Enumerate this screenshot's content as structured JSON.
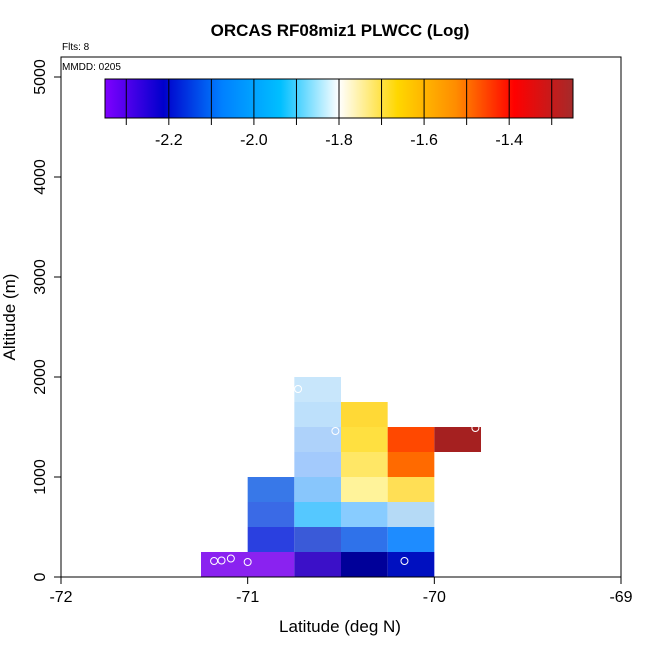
{
  "chart_data": {
    "type": "heatmap",
    "title": "ORCAS RF08miz1 PLWCC (Log)",
    "xlabel": "Latitude (deg N)",
    "ylabel": "Altitude (m)",
    "xlim": [
      -72,
      -69
    ],
    "ylim": [
      0,
      5200
    ],
    "x_ticks": [
      -72,
      -71,
      -70,
      -69
    ],
    "x_tick_labels": [
      "-72",
      "-71",
      "-70",
      "-69"
    ],
    "y_ticks": [
      0,
      1000,
      2000,
      3000,
      4000,
      5000
    ],
    "y_tick_labels": [
      "0",
      "1000",
      "2000",
      "3000",
      "4000",
      "5000"
    ],
    "notes": {
      "flights": "Flts: 8",
      "date": "MMDD: 0205"
    },
    "colorbar": {
      "range": [
        -2.35,
        -1.25
      ],
      "ticks": [
        -2.2,
        -2.0,
        -1.8,
        -1.6,
        -1.4
      ],
      "tick_labels": [
        "-2.2",
        "-2.0",
        "-1.8",
        "-1.6",
        "-1.4"
      ],
      "colors": [
        "#7f00ff",
        "#0000cc",
        "#0080ff",
        "#00bfff",
        "#ffffff",
        "#ffd700",
        "#ff8c00",
        "#ff0000",
        "#a52a2a"
      ]
    },
    "cells": [
      {
        "x0": -71.25,
        "x1": -70.75,
        "y0": 0,
        "y1": 250,
        "color": "#8a22f0",
        "value": -2.28
      },
      {
        "x0": -70.75,
        "x1": -70.5,
        "y0": 0,
        "y1": 250,
        "color": "#3b10c8",
        "value": -2.22
      },
      {
        "x0": -70.5,
        "x1": -70.25,
        "y0": 0,
        "y1": 250,
        "color": "#000099",
        "value": -2.17
      },
      {
        "x0": -70.25,
        "x1": -70.0,
        "y0": 0,
        "y1": 250,
        "color": "#0010c0",
        "value": -2.15
      },
      {
        "x0": -71.0,
        "x1": -70.75,
        "y0": 250,
        "y1": 500,
        "color": "#2a40e0",
        "value": -2.1
      },
      {
        "x0": -70.75,
        "x1": -70.5,
        "y0": 250,
        "y1": 500,
        "color": "#3a5ad8",
        "value": -2.06
      },
      {
        "x0": -70.5,
        "x1": -70.25,
        "y0": 250,
        "y1": 500,
        "color": "#2f72ea",
        "value": -2.03
      },
      {
        "x0": -70.25,
        "x1": -70.0,
        "y0": 250,
        "y1": 500,
        "color": "#1e8cff",
        "value": -1.98
      },
      {
        "x0": -71.0,
        "x1": -70.75,
        "y0": 500,
        "y1": 750,
        "color": "#3a6ae6",
        "value": -2.04
      },
      {
        "x0": -70.75,
        "x1": -70.5,
        "y0": 500,
        "y1": 750,
        "color": "#55c8ff",
        "value": -1.9
      },
      {
        "x0": -70.5,
        "x1": -70.25,
        "y0": 500,
        "y1": 750,
        "color": "#88ccff",
        "value": -1.85
      },
      {
        "x0": -70.25,
        "x1": -70.0,
        "y0": 500,
        "y1": 750,
        "color": "#b5daf6",
        "value": -1.8
      },
      {
        "x0": -71.0,
        "x1": -70.75,
        "y0": 750,
        "y1": 1000,
        "color": "#3878e8",
        "value": -2.02
      },
      {
        "x0": -70.75,
        "x1": -70.5,
        "y0": 750,
        "y1": 1000,
        "color": "#88c6fc",
        "value": -1.86
      },
      {
        "x0": -70.5,
        "x1": -70.25,
        "y0": 750,
        "y1": 1000,
        "color": "#fff39a",
        "value": -1.66
      },
      {
        "x0": -70.25,
        "x1": -70.0,
        "y0": 750,
        "y1": 1000,
        "color": "#ffdf55",
        "value": -1.6
      },
      {
        "x0": -70.75,
        "x1": -70.5,
        "y0": 1000,
        "y1": 1250,
        "color": "#a3cafc",
        "value": -1.82
      },
      {
        "x0": -70.5,
        "x1": -70.25,
        "y0": 1000,
        "y1": 1250,
        "color": "#ffe766",
        "value": -1.62
      },
      {
        "x0": -70.25,
        "x1": -70.0,
        "y0": 1000,
        "y1": 1250,
        "color": "#ff6a00",
        "value": -1.44
      },
      {
        "x0": -70.75,
        "x1": -70.5,
        "y0": 1250,
        "y1": 1500,
        "color": "#aed2fa",
        "value": -1.8
      },
      {
        "x0": -70.5,
        "x1": -70.25,
        "y0": 1250,
        "y1": 1500,
        "color": "#ffe040",
        "value": -1.6
      },
      {
        "x0": -70.25,
        "x1": -70.0,
        "y0": 1250,
        "y1": 1500,
        "color": "#ff4800",
        "value": -1.4
      },
      {
        "x0": -70.0,
        "x1": -69.75,
        "y0": 1250,
        "y1": 1500,
        "color": "#a52020",
        "value": -1.28
      },
      {
        "x0": -70.75,
        "x1": -70.5,
        "y0": 1500,
        "y1": 1750,
        "color": "#bde0fb",
        "value": -1.78
      },
      {
        "x0": -70.5,
        "x1": -70.25,
        "y0": 1500,
        "y1": 1750,
        "color": "#ffd936",
        "value": -1.58
      },
      {
        "x0": -70.75,
        "x1": -70.5,
        "y0": 1750,
        "y1": 2000,
        "color": "#c8e6fb",
        "value": -1.76
      }
    ],
    "points": [
      {
        "x": -71.18,
        "y": 160
      },
      {
        "x": -71.14,
        "y": 165
      },
      {
        "x": -71.09,
        "y": 185
      },
      {
        "x": -71.0,
        "y": 150
      },
      {
        "x": -70.16,
        "y": 160
      },
      {
        "x": -70.53,
        "y": 1460
      },
      {
        "x": -69.78,
        "y": 1490
      },
      {
        "x": -70.73,
        "y": 1880
      }
    ]
  }
}
